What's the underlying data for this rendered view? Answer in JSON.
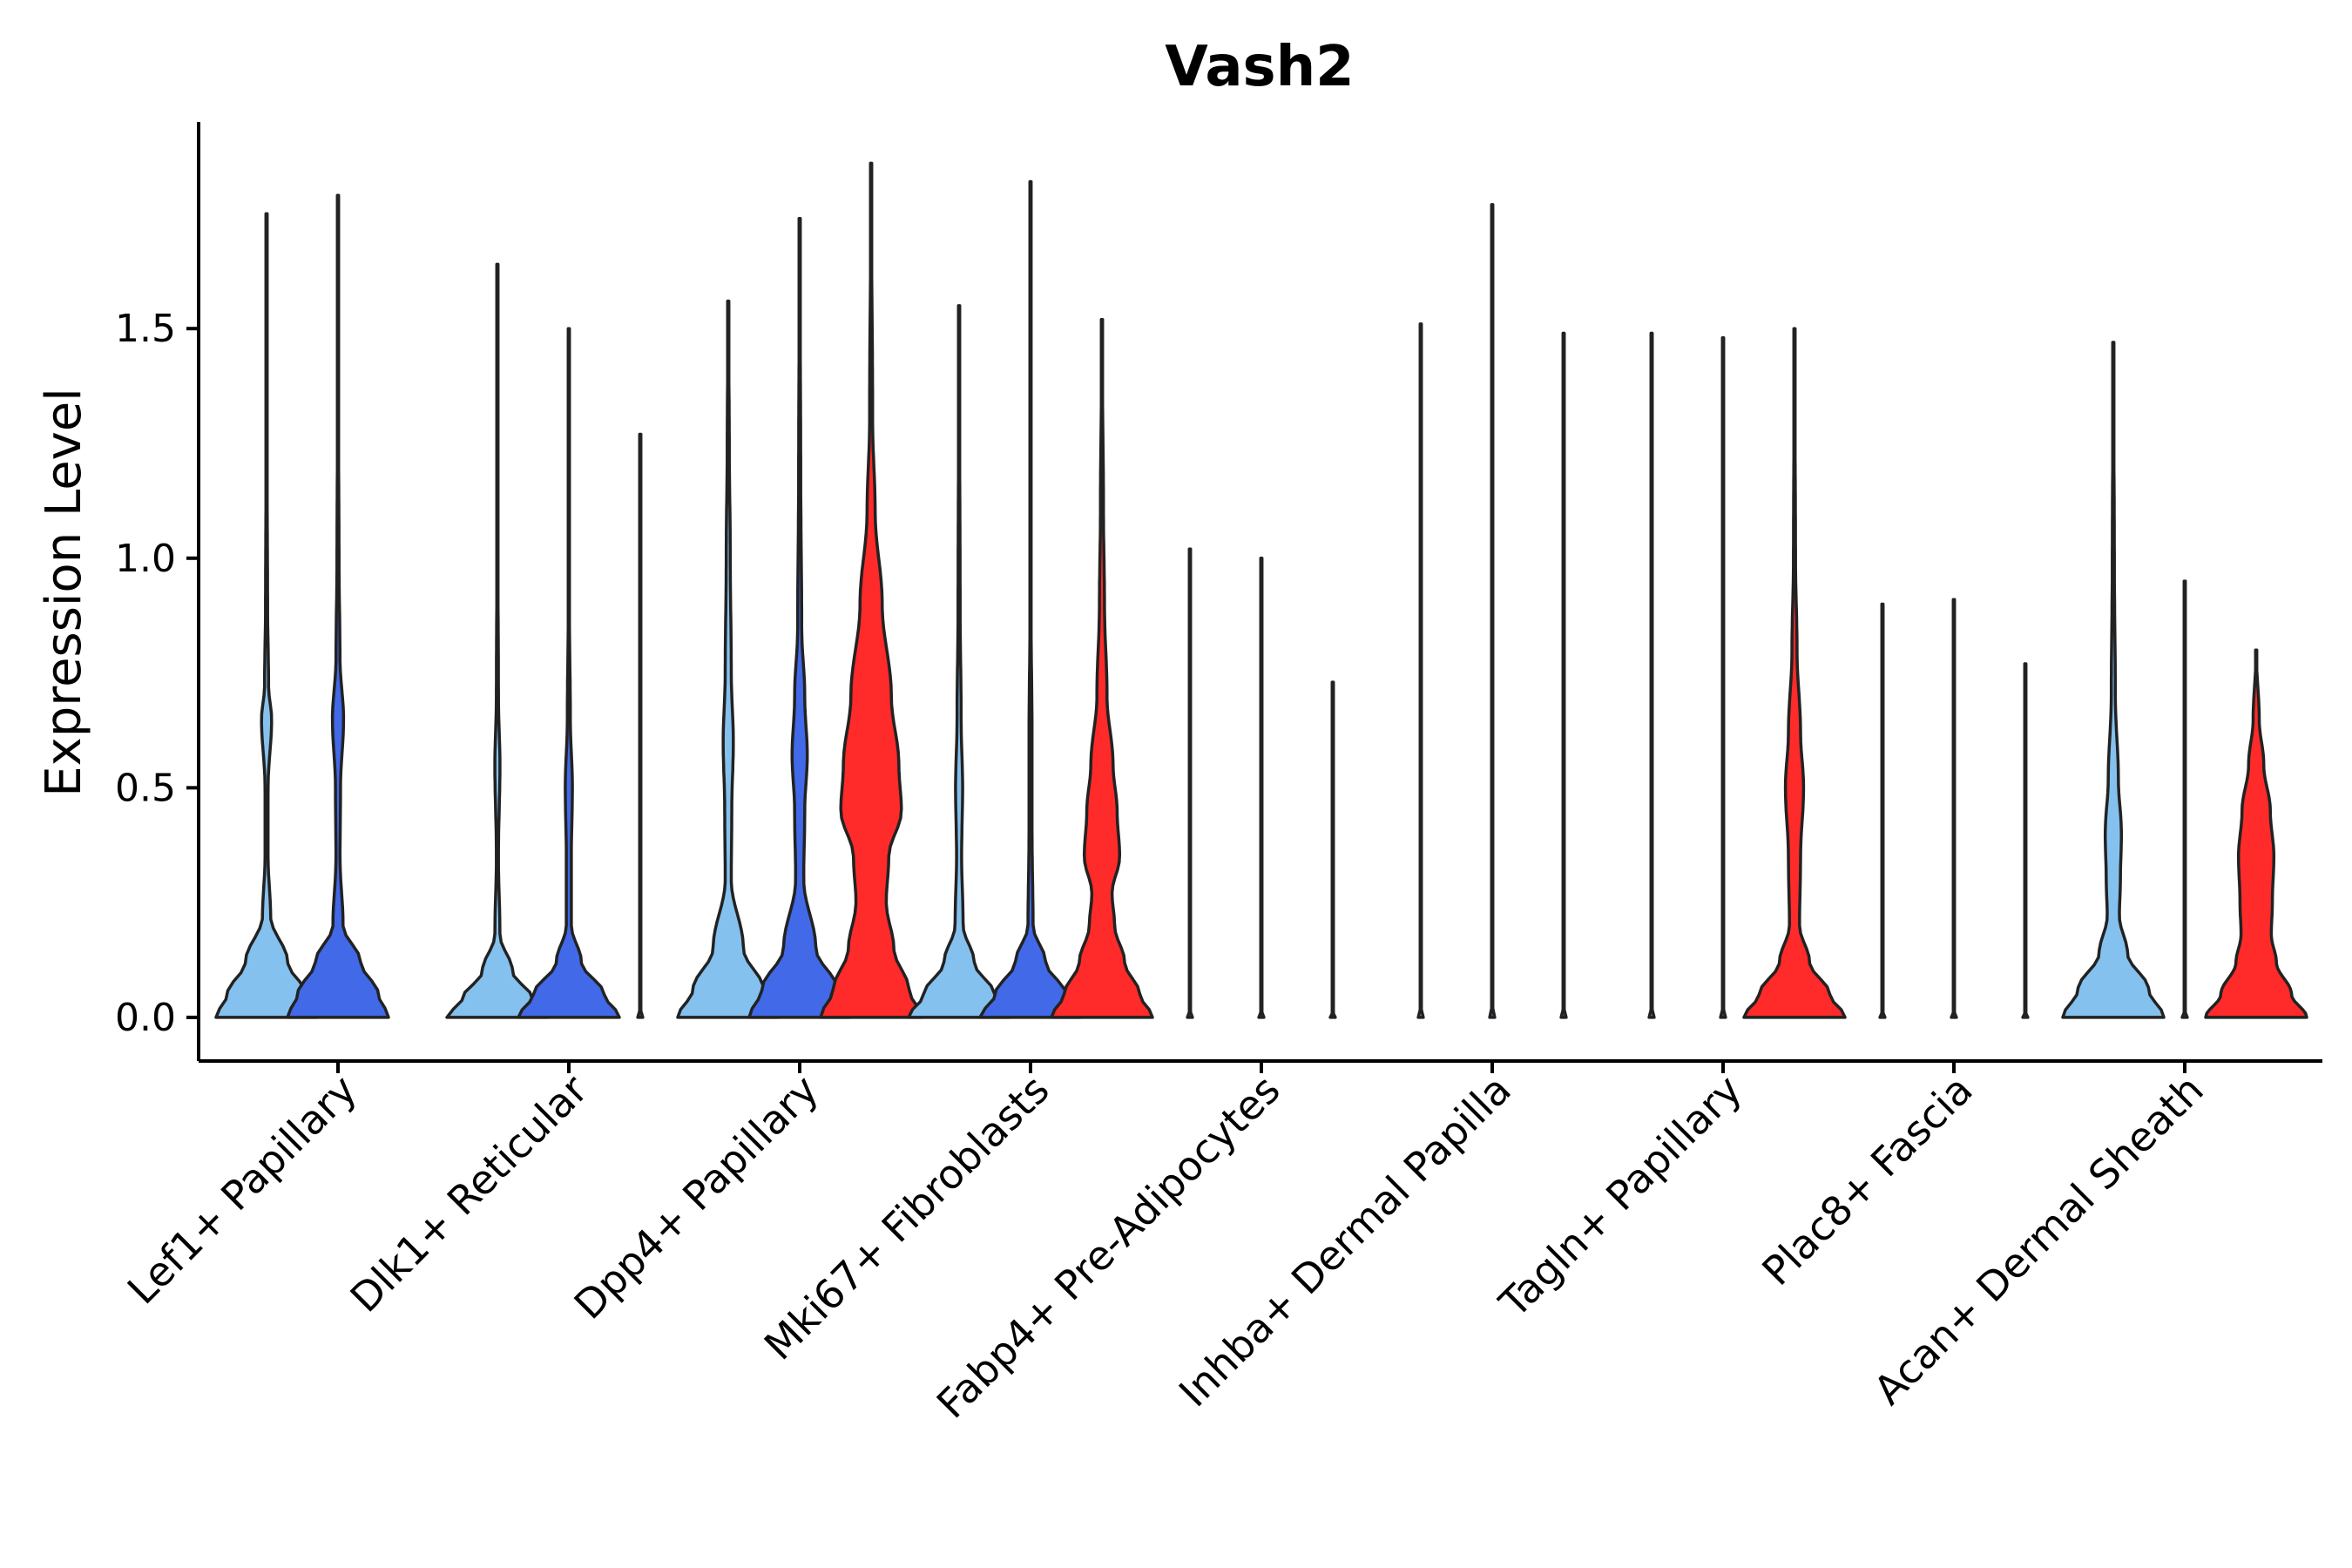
{
  "chart_data": {
    "type": "violin",
    "title": "Vash2",
    "xlabel": "",
    "ylabel": "Expression Level",
    "ylim": [
      -0.095,
      1.95
    ],
    "yticks": [
      0.0,
      0.5,
      1.0,
      1.5
    ],
    "ytick_labels": [
      "0.0",
      "0.5",
      "1.0",
      "1.5"
    ],
    "categories": [
      "Lef1+ Papillary",
      "Dlk1+ Reticular",
      "Dpp4+ Papillary",
      "Mki67+ Fibroblasts",
      "Fabp4+ Pre-Adipocytes",
      "Inhba+ Dermal Papilla",
      "Tagln+ Papillary",
      "Plac8+ Fascia",
      "Acan+ Dermal Sheath"
    ],
    "series_colors": [
      "#85C1EE",
      "#4169E8",
      "#FF2A2A"
    ],
    "violins": [
      {
        "category": 0,
        "series": 0,
        "max": 1.75,
        "profile": [
          [
            0,
            1
          ],
          [
            0.05,
            0.78
          ],
          [
            0.12,
            0.42
          ],
          [
            0.22,
            0.08
          ],
          [
            0.35,
            0.03
          ],
          [
            0.5,
            0.03
          ],
          [
            0.65,
            0.1
          ],
          [
            0.72,
            0.04
          ],
          [
            0.9,
            0.02
          ],
          [
            1.2,
            0.01
          ],
          [
            1.75,
            0.0
          ]
        ]
      },
      {
        "category": 0,
        "series": 1,
        "max": 1.79,
        "profile": [
          [
            0,
            1
          ],
          [
            0.05,
            0.8
          ],
          [
            0.12,
            0.45
          ],
          [
            0.2,
            0.1
          ],
          [
            0.35,
            0.04
          ],
          [
            0.5,
            0.05
          ],
          [
            0.65,
            0.11
          ],
          [
            0.78,
            0.04
          ],
          [
            1.0,
            0.02
          ],
          [
            1.3,
            0.01
          ],
          [
            1.79,
            0.0
          ]
        ]
      },
      {
        "category": 1,
        "series": 0,
        "max": 1.64,
        "profile": [
          [
            0,
            1
          ],
          [
            0.04,
            0.7
          ],
          [
            0.1,
            0.3
          ],
          [
            0.18,
            0.05
          ],
          [
            0.35,
            0.02
          ],
          [
            0.55,
            0.05
          ],
          [
            0.7,
            0.02
          ],
          [
            1.0,
            0.01
          ],
          [
            1.64,
            0.0
          ]
        ]
      },
      {
        "category": 1,
        "series": 1,
        "max": 1.5,
        "profile": [
          [
            0,
            1
          ],
          [
            0.05,
            0.7
          ],
          [
            0.12,
            0.25
          ],
          [
            0.2,
            0.05
          ],
          [
            0.35,
            0.05
          ],
          [
            0.5,
            0.07
          ],
          [
            0.65,
            0.03
          ],
          [
            0.9,
            0.01
          ],
          [
            1.5,
            0.0
          ]
        ]
      },
      {
        "category": 1,
        "series": 2,
        "max": 1.27,
        "profile": [
          [
            0,
            0.05
          ],
          [
            0.01,
            0.01
          ],
          [
            1.27,
            0.0
          ]
        ]
      },
      {
        "category": 2,
        "series": 0,
        "max": 1.56,
        "profile": [
          [
            0,
            1
          ],
          [
            0.06,
            0.7
          ],
          [
            0.15,
            0.3
          ],
          [
            0.3,
            0.06
          ],
          [
            0.45,
            0.07
          ],
          [
            0.6,
            0.1
          ],
          [
            0.75,
            0.06
          ],
          [
            1.0,
            0.04
          ],
          [
            1.25,
            0.02
          ],
          [
            1.56,
            0.0
          ]
        ]
      },
      {
        "category": 2,
        "series": 1,
        "max": 1.74,
        "profile": [
          [
            0,
            1
          ],
          [
            0.06,
            0.75
          ],
          [
            0.15,
            0.32
          ],
          [
            0.3,
            0.08
          ],
          [
            0.45,
            0.1
          ],
          [
            0.57,
            0.15
          ],
          [
            0.7,
            0.1
          ],
          [
            0.85,
            0.04
          ],
          [
            1.2,
            0.02
          ],
          [
            1.74,
            0.0
          ]
        ]
      },
      {
        "category": 2,
        "series": 2,
        "max": 1.86,
        "profile": [
          [
            0,
            1
          ],
          [
            0.06,
            0.75
          ],
          [
            0.15,
            0.45
          ],
          [
            0.25,
            0.3
          ],
          [
            0.35,
            0.35
          ],
          [
            0.45,
            0.6
          ],
          [
            0.55,
            0.55
          ],
          [
            0.7,
            0.4
          ],
          [
            0.9,
            0.22
          ],
          [
            1.1,
            0.08
          ],
          [
            1.3,
            0.03
          ],
          [
            1.86,
            0.0
          ]
        ]
      },
      {
        "category": 3,
        "series": 0,
        "max": 1.55,
        "profile": [
          [
            0,
            1
          ],
          [
            0.05,
            0.7
          ],
          [
            0.12,
            0.3
          ],
          [
            0.2,
            0.08
          ],
          [
            0.35,
            0.05
          ],
          [
            0.5,
            0.07
          ],
          [
            0.65,
            0.04
          ],
          [
            0.9,
            0.02
          ],
          [
            1.55,
            0.0
          ]
        ]
      },
      {
        "category": 3,
        "series": 1,
        "max": 1.82,
        "profile": [
          [
            0,
            1
          ],
          [
            0.05,
            0.7
          ],
          [
            0.12,
            0.3
          ],
          [
            0.2,
            0.05
          ],
          [
            0.4,
            0.03
          ],
          [
            0.6,
            0.03
          ],
          [
            0.9,
            0.01
          ],
          [
            1.82,
            0.0
          ]
        ]
      },
      {
        "category": 3,
        "series": 2,
        "max": 1.52,
        "profile": [
          [
            0,
            1
          ],
          [
            0.05,
            0.75
          ],
          [
            0.12,
            0.45
          ],
          [
            0.2,
            0.25
          ],
          [
            0.27,
            0.2
          ],
          [
            0.35,
            0.35
          ],
          [
            0.45,
            0.3
          ],
          [
            0.55,
            0.22
          ],
          [
            0.7,
            0.1
          ],
          [
            0.9,
            0.05
          ],
          [
            1.1,
            0.03
          ],
          [
            1.52,
            0.0
          ]
        ]
      },
      {
        "category": 4,
        "series": 0,
        "max": 1.02,
        "profile": [
          [
            0,
            0.05
          ],
          [
            0.01,
            0.01
          ],
          [
            1.02,
            0.0
          ]
        ]
      },
      {
        "category": 4,
        "series": 1,
        "max": 1.0,
        "profile": [
          [
            0,
            0.05
          ],
          [
            0.01,
            0.01
          ],
          [
            1.0,
            0.0
          ]
        ]
      },
      {
        "category": 4,
        "series": 2,
        "max": 0.73,
        "profile": [
          [
            0,
            0.05
          ],
          [
            0.01,
            0.01
          ],
          [
            0.73,
            0.0
          ]
        ]
      },
      {
        "category": 5,
        "series": 0,
        "max": 1.51,
        "profile": [
          [
            0,
            0.05
          ],
          [
            0.01,
            0.01
          ],
          [
            1.51,
            0.0
          ]
        ]
      },
      {
        "category": 5,
        "series": 1,
        "max": 1.77,
        "profile": [
          [
            0,
            0.05
          ],
          [
            0.01,
            0.01
          ],
          [
            1.77,
            0.0
          ]
        ]
      },
      {
        "category": 5,
        "series": 2,
        "max": 1.49,
        "profile": [
          [
            0,
            0.05
          ],
          [
            0.01,
            0.01
          ],
          [
            1.49,
            0.0
          ]
        ]
      },
      {
        "category": 6,
        "series": 0,
        "max": 1.49,
        "profile": [
          [
            0,
            0.05
          ],
          [
            0.01,
            0.01
          ],
          [
            1.49,
            0.0
          ]
        ]
      },
      {
        "category": 6,
        "series": 1,
        "max": 1.48,
        "profile": [
          [
            0,
            0.05
          ],
          [
            0.01,
            0.01
          ],
          [
            1.48,
            0.0
          ]
        ]
      },
      {
        "category": 6,
        "series": 2,
        "max": 1.5,
        "profile": [
          [
            0,
            1
          ],
          [
            0.05,
            0.7
          ],
          [
            0.12,
            0.3
          ],
          [
            0.2,
            0.1
          ],
          [
            0.35,
            0.12
          ],
          [
            0.5,
            0.18
          ],
          [
            0.62,
            0.12
          ],
          [
            0.8,
            0.05
          ],
          [
            1.0,
            0.02
          ],
          [
            1.5,
            0.0
          ]
        ]
      },
      {
        "category": 7,
        "series": 0,
        "max": 0.9,
        "profile": [
          [
            0,
            0.05
          ],
          [
            0.01,
            0.01
          ],
          [
            0.9,
            0.0
          ]
        ]
      },
      {
        "category": 7,
        "series": 1,
        "max": 0.91,
        "profile": [
          [
            0,
            0.05
          ],
          [
            0.01,
            0.01
          ],
          [
            0.91,
            0.0
          ]
        ]
      },
      {
        "category": 7,
        "series": 2,
        "max": 0.77,
        "profile": [
          [
            0,
            0.05
          ],
          [
            0.01,
            0.01
          ],
          [
            0.77,
            0.0
          ]
        ]
      },
      {
        "category": 8,
        "series": 0,
        "max": 1.47,
        "profile": [
          [
            0,
            1
          ],
          [
            0.06,
            0.7
          ],
          [
            0.14,
            0.28
          ],
          [
            0.22,
            0.12
          ],
          [
            0.3,
            0.14
          ],
          [
            0.4,
            0.16
          ],
          [
            0.52,
            0.1
          ],
          [
            0.7,
            0.04
          ],
          [
            1.0,
            0.02
          ],
          [
            1.47,
            0.0
          ]
        ]
      },
      {
        "category": 8,
        "series": 1,
        "max": 0.95,
        "profile": [
          [
            0,
            0.05
          ],
          [
            0.01,
            0.01
          ],
          [
            0.95,
            0.0
          ]
        ]
      },
      {
        "category": 8,
        "series": 2,
        "max": 0.8,
        "profile": [
          [
            0,
            1
          ],
          [
            0.05,
            0.7
          ],
          [
            0.12,
            0.4
          ],
          [
            0.18,
            0.3
          ],
          [
            0.25,
            0.32
          ],
          [
            0.35,
            0.35
          ],
          [
            0.45,
            0.28
          ],
          [
            0.55,
            0.15
          ],
          [
            0.65,
            0.06
          ],
          [
            0.8,
            0.0
          ]
        ]
      }
    ]
  }
}
